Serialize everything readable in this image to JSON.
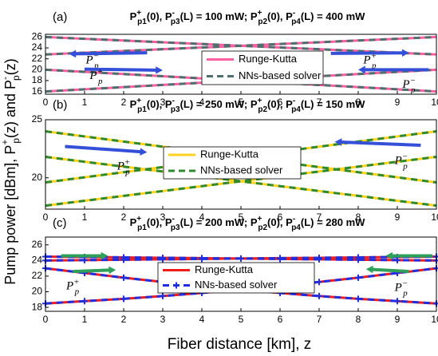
{
  "ylabel": [
    {
      "text": "Pump power [dBm], P",
      "sup": "+",
      "sub": "p"
    },
    {
      "text": "(z) and P",
      "sup": "-",
      "sub": "p"
    },
    {
      "text": "(z)"
    }
  ],
  "xlabel": "Fiber distance [km], z",
  "chart_data": [
    {
      "type": "line",
      "label": "(a)",
      "title": [
        {
          "text": "P",
          "sup": "+",
          "sub": "p1"
        },
        {
          "text": "(0), P",
          "sup": "-",
          "sub": "p3"
        },
        {
          "text": "(L) = 100 mW;    P",
          "sup": "+",
          "sub": "p2"
        },
        {
          "text": "(0), P",
          "sup": "-",
          "sub": "p4"
        },
        {
          "text": "(L) = 400 mW"
        }
      ],
      "x": [
        0,
        1,
        2,
        3,
        4,
        5,
        6,
        7,
        8,
        9,
        10
      ],
      "xlim": [
        0,
        10
      ],
      "xticks": [
        0,
        1,
        2,
        3,
        4,
        5,
        6,
        7,
        8,
        9,
        10
      ],
      "ylim": [
        15.5,
        26.5
      ],
      "yticks": [
        16,
        18,
        20,
        22,
        24,
        26
      ],
      "series": [
        {
          "name": "Runge-Kutta",
          "color": "#ff5fa2",
          "dashed": false,
          "values": [
            [
              26,
              25.68,
              25.36,
              25.04,
              24.72,
              24.4,
              24.08,
              23.76,
              23.44,
              23.12,
              22.8
            ],
            [
              22.8,
              23.12,
              23.44,
              23.76,
              24.08,
              24.4,
              24.72,
              25.04,
              25.36,
              25.68,
              26
            ],
            [
              20,
              19.6,
              19.2,
              18.8,
              18.4,
              18,
              17.6,
              17.2,
              16.8,
              16.4,
              16
            ],
            [
              16,
              16.4,
              16.8,
              17.2,
              17.6,
              18,
              18.4,
              18.8,
              19.2,
              19.6,
              20
            ]
          ]
        },
        {
          "name": "NNs-based solver",
          "color": "#4d706c",
          "dashed": true,
          "values": [
            [
              26,
              25.68,
              25.36,
              25.04,
              24.72,
              24.4,
              24.08,
              23.76,
              23.44,
              23.12,
              22.8
            ],
            [
              22.8,
              23.12,
              23.44,
              23.76,
              24.08,
              24.4,
              24.72,
              25.04,
              25.36,
              25.68,
              26
            ],
            [
              20,
              19.6,
              19.2,
              18.8,
              18.4,
              18,
              17.6,
              17.2,
              16.8,
              16.4,
              16
            ],
            [
              16,
              16.4,
              16.8,
              17.2,
              17.6,
              18,
              18.4,
              18.8,
              19.2,
              19.6,
              20
            ]
          ]
        }
      ],
      "annotations": [
        {
          "text": "P",
          "sup": "−",
          "sub": "p"
        },
        {
          "text": "P",
          "sup": "+",
          "sub": "p"
        },
        {
          "text": "P",
          "sup": "+",
          "sub": "p"
        },
        {
          "text": "P",
          "sup": "−",
          "sub": "p"
        }
      ]
    },
    {
      "type": "line",
      "label": "(b)",
      "title": [
        {
          "text": "P",
          "sup": "+",
          "sub": "p1"
        },
        {
          "text": "(0), P",
          "sup": "-",
          "sub": "p3"
        },
        {
          "text": "(L) = 250 mW;    P",
          "sup": "+",
          "sub": "p2"
        },
        {
          "text": "(0), P",
          "sup": "-",
          "sub": "p4"
        },
        {
          "text": "(L) = 150 mW"
        }
      ],
      "x": [
        0,
        1,
        2,
        3,
        4,
        5,
        6,
        7,
        8,
        9,
        10
      ],
      "xlim": [
        0,
        10
      ],
      "xticks": [
        0,
        1,
        2,
        3,
        4,
        5,
        6,
        7,
        8,
        9,
        10
      ],
      "ylim": [
        17.3,
        25
      ],
      "yticks": [
        20,
        25
      ],
      "series": [
        {
          "name": "Runge-Kutta",
          "color": "#ffd21f",
          "dashed": false,
          "values": [
            [
              24,
              23.56,
              23.12,
              22.68,
              22.24,
              21.8,
              21.36,
              20.92,
              20.48,
              20.04,
              19.6
            ],
            [
              19.6,
              20.04,
              20.48,
              20.92,
              21.36,
              21.8,
              22.24,
              22.68,
              23.12,
              23.56,
              24
            ],
            [
              21.8,
              21.38,
              20.96,
              20.54,
              20.12,
              19.7,
              19.28,
              18.86,
              18.44,
              18.02,
              17.6
            ],
            [
              17.6,
              18.02,
              18.44,
              18.86,
              19.28,
              19.7,
              20.12,
              20.54,
              20.96,
              21.38,
              21.8
            ]
          ]
        },
        {
          "name": "NNs-based solver",
          "color": "#2f8a2f",
          "dashed": true,
          "values": [
            [
              24,
              23.56,
              23.12,
              22.68,
              22.24,
              21.8,
              21.36,
              20.92,
              20.48,
              20.04,
              19.6
            ],
            [
              19.6,
              20.04,
              20.48,
              20.92,
              21.36,
              21.8,
              22.24,
              22.68,
              23.12,
              23.56,
              24
            ],
            [
              21.8,
              21.38,
              20.96,
              20.54,
              20.12,
              19.7,
              19.28,
              18.86,
              18.44,
              18.02,
              17.6
            ],
            [
              17.6,
              18.02,
              18.44,
              18.86,
              19.28,
              19.7,
              20.12,
              20.54,
              20.96,
              21.38,
              21.8
            ]
          ]
        }
      ],
      "annotations": [
        {
          "text": "P",
          "sup": "+",
          "sub": "p"
        },
        {
          "text": "P",
          "sup": "−",
          "sub": "p"
        }
      ]
    },
    {
      "type": "line",
      "label": "(c)",
      "title": [
        {
          "text": "P",
          "sup": "+",
          "sub": "p1"
        },
        {
          "text": "(0), P",
          "sup": "-",
          "sub": "p3"
        },
        {
          "text": "(L) = 200 mW;    P",
          "sup": "+",
          "sub": "p2"
        },
        {
          "text": "(0), P",
          "sup": "-",
          "sub": "p4"
        },
        {
          "text": "(L) = 280 mW"
        }
      ],
      "x": [
        0,
        1,
        2,
        3,
        4,
        5,
        6,
        7,
        8,
        9,
        10
      ],
      "xlim": [
        0,
        10
      ],
      "xticks": [
        0,
        1,
        2,
        3,
        4,
        5,
        6,
        7,
        8,
        9,
        10
      ],
      "ylim": [
        17.5,
        27
      ],
      "yticks": [
        18,
        20,
        22,
        24,
        26
      ],
      "series": [
        {
          "name": "Runge-Kutta",
          "color": "#ee1c1c",
          "dashed": false,
          "values": [
            [
              24.5,
              24.45,
              24.4,
              24.35,
              24.3,
              24.25,
              24.2,
              24.15,
              24.1,
              24.05,
              24
            ],
            [
              24,
              24.05,
              24.1,
              24.15,
              24.2,
              24.25,
              24.3,
              24.35,
              24.4,
              24.45,
              24.5
            ],
            [
              23,
              22.4,
              21.8,
              21.25,
              20.75,
              20.3,
              19.85,
              19.45,
              19.1,
              18.8,
              18.5
            ],
            [
              18.5,
              18.8,
              19.1,
              19.45,
              19.85,
              20.3,
              20.75,
              21.25,
              21.8,
              22.4,
              23
            ]
          ]
        },
        {
          "name": "NNs-based solver",
          "color": "#1f2fe0",
          "dashed": true,
          "marker": "+",
          "values": [
            [
              24.5,
              24.45,
              24.4,
              24.35,
              24.3,
              24.25,
              24.2,
              24.15,
              24.1,
              24.05,
              24
            ],
            [
              24,
              24.05,
              24.1,
              24.15,
              24.2,
              24.25,
              24.3,
              24.35,
              24.4,
              24.45,
              24.5
            ],
            [
              23,
              22.4,
              21.8,
              21.25,
              20.75,
              20.3,
              19.85,
              19.45,
              19.1,
              18.8,
              18.5
            ],
            [
              18.5,
              18.8,
              19.1,
              19.45,
              19.85,
              20.3,
              20.75,
              21.25,
              21.8,
              22.4,
              23
            ]
          ]
        }
      ],
      "annotations": [
        {
          "text": "P",
          "sup": "+",
          "sub": "p"
        },
        {
          "text": "P",
          "sup": "−",
          "sub": "p"
        }
      ]
    }
  ]
}
